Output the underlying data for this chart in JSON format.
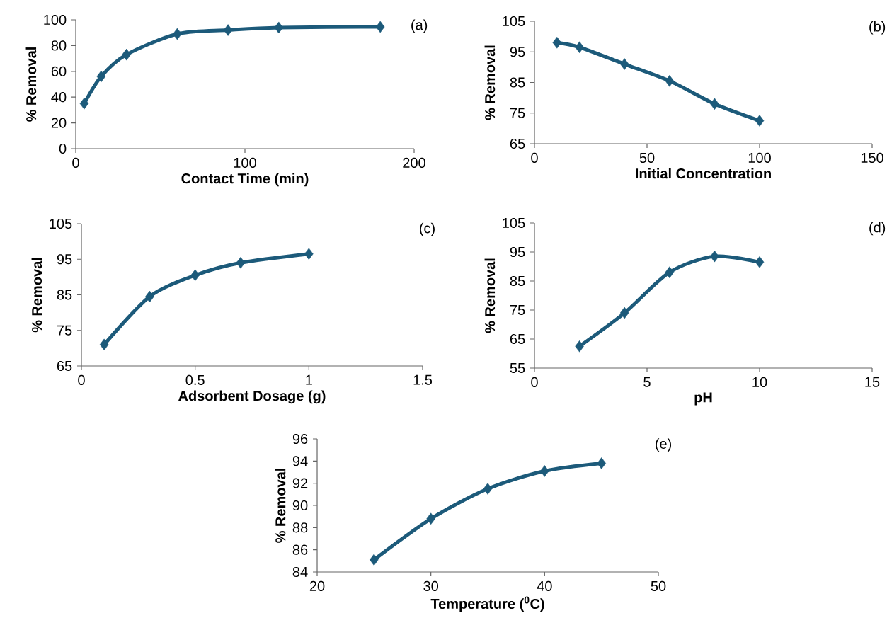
{
  "chart_data": [
    {
      "type": "line",
      "xlabel": "Contact Time (min)",
      "ylabel": "% Removal",
      "annotations": [
        "(a)"
      ],
      "marker": "diamond",
      "xlim": [
        0,
        200
      ],
      "xticks": [
        0,
        100,
        200
      ],
      "ylim": [
        0,
        100
      ],
      "yticks": [
        0,
        20,
        40,
        60,
        80,
        100
      ],
      "series": [
        {
          "color": "#1c5a7a",
          "x": [
            5,
            15,
            30,
            60,
            90,
            120,
            180
          ],
          "values": [
            35,
            56,
            73,
            89,
            92,
            94,
            94.5
          ]
        }
      ]
    },
    {
      "type": "line",
      "xlabel": "Initial Concentration",
      "ylabel": "% Removal",
      "annotations": [
        "(b)"
      ],
      "marker": "diamond",
      "xlim": [
        0,
        150
      ],
      "xticks": [
        0,
        50,
        100,
        150
      ],
      "ylim": [
        65,
        105
      ],
      "yticks": [
        65,
        75,
        85,
        95,
        105
      ],
      "series": [
        {
          "color": "#1c5a7a",
          "x": [
            10,
            20,
            40,
            60,
            80,
            100
          ],
          "values": [
            98,
            96.5,
            91,
            85.5,
            78,
            72.5
          ]
        }
      ]
    },
    {
      "type": "line",
      "xlabel": "Adsorbent Dosage (g)",
      "ylabel": "% Removal",
      "annotations": [
        "(c)"
      ],
      "marker": "diamond",
      "xlim": [
        0,
        1.5
      ],
      "xticks": [
        0,
        0.5,
        1,
        1.5
      ],
      "ylim": [
        65,
        105
      ],
      "yticks": [
        65,
        75,
        85,
        95,
        105
      ],
      "series": [
        {
          "color": "#1c5a7a",
          "x": [
            0.1,
            0.3,
            0.5,
            0.7,
            1.0
          ],
          "values": [
            71,
            84.5,
            90.5,
            94,
            96.5
          ]
        }
      ]
    },
    {
      "type": "line",
      "xlabel": "pH",
      "ylabel": "% Removal",
      "annotations": [
        "(d)"
      ],
      "marker": "diamond",
      "xlim": [
        0,
        15
      ],
      "xticks": [
        0,
        5,
        10,
        15
      ],
      "ylim": [
        55,
        105
      ],
      "yticks": [
        55,
        65,
        75,
        85,
        95,
        105
      ],
      "series": [
        {
          "color": "#1c5a7a",
          "x": [
            2,
            4,
            6,
            8,
            10
          ],
          "values": [
            62.5,
            74,
            88,
            93.5,
            91.5
          ]
        }
      ]
    },
    {
      "type": "line",
      "xlabel": "Temperature ($^{0}$C)",
      "ylabel": "% Removal",
      "annotations": [
        "(e)"
      ],
      "marker": "diamond",
      "xlim": [
        20,
        50
      ],
      "xticks": [
        20,
        30,
        40,
        50
      ],
      "ylim": [
        84,
        96
      ],
      "yticks": [
        84,
        86,
        88,
        90,
        92,
        94,
        96
      ],
      "series": [
        {
          "color": "#1c5a7a",
          "x": [
            25,
            30,
            35,
            40,
            45
          ],
          "values": [
            85.1,
            88.8,
            91.5,
            93.1,
            93.8
          ]
        }
      ]
    }
  ]
}
